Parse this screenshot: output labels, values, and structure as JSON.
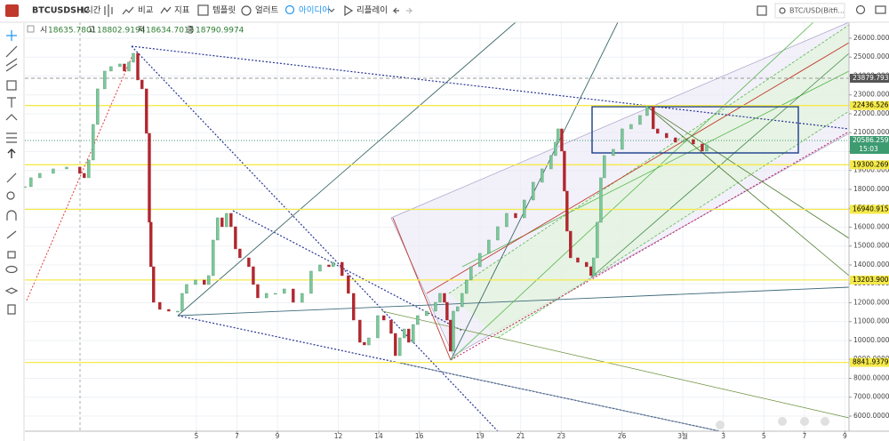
{
  "toolbar": {
    "symbol": "BTCUSDSHC",
    "interval": "1시간",
    "buttons": [
      "비교",
      "지표",
      "템플릿",
      "얼러트",
      "아이디어",
      "리플레이"
    ],
    "symbol_search": "BTC/USD(Bitfi..."
  },
  "legend": {
    "items": [
      {
        "label": "시",
        "value": 18635.7801
      },
      {
        "label": "고",
        "value": 18802.9194
      },
      {
        "label": "저",
        "value": 18634.7013
      },
      {
        "label": "종",
        "value": 18790.9974
      }
    ]
  },
  "chart_data": {
    "type": "candlestick",
    "x": [
      -8.46,
      -8.16,
      -7.72,
      -7.06,
      -6.4,
      -5.75,
      -5.53,
      -5.31,
      -5.09,
      -4.87,
      -4.52,
      -4.21,
      -3.77,
      -3.55,
      -3.33,
      -3.11,
      -2.89,
      -2.68,
      -2.46,
      -2.32,
      -2.24,
      -2.11,
      -1.8,
      -1.36,
      -0.92,
      -0.7,
      -0.48,
      -0.04,
      0.39,
      0.61,
      0.83,
      1.05,
      1.27,
      1.49,
      1.71,
      1.93,
      2.15,
      2.59,
      2.81,
      3.03,
      3.46,
      3.9,
      4.34,
      4.78,
      5.22,
      5.66,
      6.1,
      6.54,
      6.75,
      7.19,
      7.5,
      7.76,
      8.07,
      8.29,
      8.51,
      8.95,
      9.25,
      9.61,
      9.82,
      10.04,
      10.26,
      10.48,
      10.7,
      10.92,
      11.36,
      11.8,
      12.02,
      12.24,
      12.37,
      12.54,
      12.68,
      12.89,
      13.11,
      13.33,
      13.55,
      13.99,
      14.43,
      14.87,
      15.31,
      15.75,
      16.18,
      16.62,
      17.06,
      17.5,
      17.72,
      17.85,
      18.03,
      18.16,
      18.29,
      18.46,
      18.82,
      19.25,
      19.47,
      19.6,
      19.78,
      19.96,
      20.13,
      20.57,
      21.01,
      21.45,
      21.89,
      22.24,
      22.54,
      22.76,
      23.2,
      23.64,
      24.08,
      24.52,
      24.96,
      25.18
    ],
    "values": [
      18141,
      18612,
      18847,
      19082,
      19176,
      18847,
      18612,
      19553,
      21435,
      23318,
      24259,
      24494,
      24635,
      24259,
      24729,
      25200,
      23788,
      23318,
      20965,
      16259,
      13906,
      12023,
      11647,
      11553,
      11553,
      12494,
      12964,
      13200,
      12964,
      13435,
      15317,
      16494,
      16023,
      16729,
      16023,
      14847,
      14376,
      13906,
      12964,
      12258,
      12494,
      12494,
      12729,
      12023,
      12494,
      13670,
      14000,
      13906,
      14141,
      13435,
      12494,
      11082,
      9905,
      9764,
      10141,
      11317,
      11082,
      10376,
      9200,
      10141,
      10611,
      9905,
      10847,
      11317,
      11553,
      12023,
      12494,
      12023,
      11082,
      9435,
      11553,
      11788,
      12494,
      13200,
      13906,
      14612,
      15317,
      16023,
      16729,
      16494,
      17435,
      18376,
      19082,
      19788,
      20494,
      21200,
      20023,
      17906,
      15788,
      14376,
      14141,
      13906,
      13435,
      14376,
      16259,
      18612,
      19788,
      20118,
      21200,
      21435,
      21906,
      22376,
      21200,
      20965,
      20729,
      20494,
      20635,
      20400,
      20023,
      20353
    ],
    "up_color": "#7cc79a",
    "down_color": "#b0272e",
    "xlim": [
      -8.46,
      32.2
    ],
    "ylim": [
      5200,
      26750
    ],
    "xticks": [
      {
        "value": 0,
        "label": "5"
      },
      {
        "value": 2,
        "label": "7"
      },
      {
        "value": 4,
        "label": "9"
      },
      {
        "value": 7,
        "label": "12"
      },
      {
        "value": 9,
        "label": "14"
      },
      {
        "value": 11,
        "label": "16"
      },
      {
        "value": 14,
        "label": "19"
      },
      {
        "value": 16,
        "label": "21"
      },
      {
        "value": 18,
        "label": "23"
      },
      {
        "value": 21,
        "label": "26"
      },
      {
        "value": 24,
        "label": "3월"
      },
      {
        "value": 26,
        "label": "3"
      },
      {
        "value": 28,
        "label": "5"
      },
      {
        "value": 30,
        "label": "7"
      },
      {
        "value": 32,
        "label": "9"
      }
    ],
    "yticks": [
      {
        "value": 6000,
        "label": "6000.0000"
      },
      {
        "value": 7000,
        "label": "7000.0000"
      },
      {
        "value": 8000,
        "label": "8000.0000"
      },
      {
        "value": 9000,
        "label": "9000.0000"
      },
      {
        "value": 10000,
        "label": "10000.0000"
      },
      {
        "value": 11000,
        "label": "11000.0000"
      },
      {
        "value": 12000,
        "label": "12000.0000"
      },
      {
        "value": 13000,
        "label": "13000.0000"
      },
      {
        "value": 14000,
        "label": "14000.0000"
      },
      {
        "value": 15000,
        "label": "15000.0000"
      },
      {
        "value": 16000,
        "label": "16000.0000"
      },
      {
        "value": 17000,
        "label": "17000.0000"
      },
      {
        "value": 18000,
        "label": "18000.0000"
      },
      {
        "value": 19000,
        "label": "19000.0000"
      },
      {
        "value": 20000,
        "label": "20000.0000"
      },
      {
        "value": 21000,
        "label": "21000.0000"
      },
      {
        "value": 22000,
        "label": "22000.0000"
      },
      {
        "value": 23000,
        "label": "23000.0000"
      },
      {
        "value": 24000,
        "label": "24000.0000"
      },
      {
        "value": 25000,
        "label": "25000.0000"
      },
      {
        "value": 26000,
        "label": "26000.0000"
      }
    ],
    "grid": true,
    "price_labels": [
      {
        "value": 23879.7937,
        "label": "23879.7937",
        "color": "#555555",
        "text_color": "#ffffff",
        "line_style": "dashed"
      },
      {
        "value": 22436.526,
        "label": "22436.5260",
        "color": "#f5ea4a",
        "text_color": "#000000",
        "line_style": "solid"
      },
      {
        "value": 20586.2597,
        "label": "20586.2597",
        "color": "#3d9b70",
        "text_color": "#ffffff",
        "line_style": "dotted",
        "countdown": "15:03"
      },
      {
        "value": 19300.2695,
        "label": "19300.2695",
        "color": "#f5ea4a",
        "text_color": "#000000",
        "line_style": "solid"
      },
      {
        "value": 16940.9154,
        "label": "16940.9154",
        "color": "#f5ea4a",
        "text_color": "#000000",
        "line_style": "solid"
      },
      {
        "value": 13203.9001,
        "label": "13203.9001",
        "color": "#f5ea4a",
        "text_color": "#000000",
        "line_style": "solid"
      },
      {
        "value": 8841.9379,
        "label": "8841.9379",
        "color": "#f5ea4a",
        "text_color": "#000000",
        "line_style": "solid"
      }
    ]
  }
}
